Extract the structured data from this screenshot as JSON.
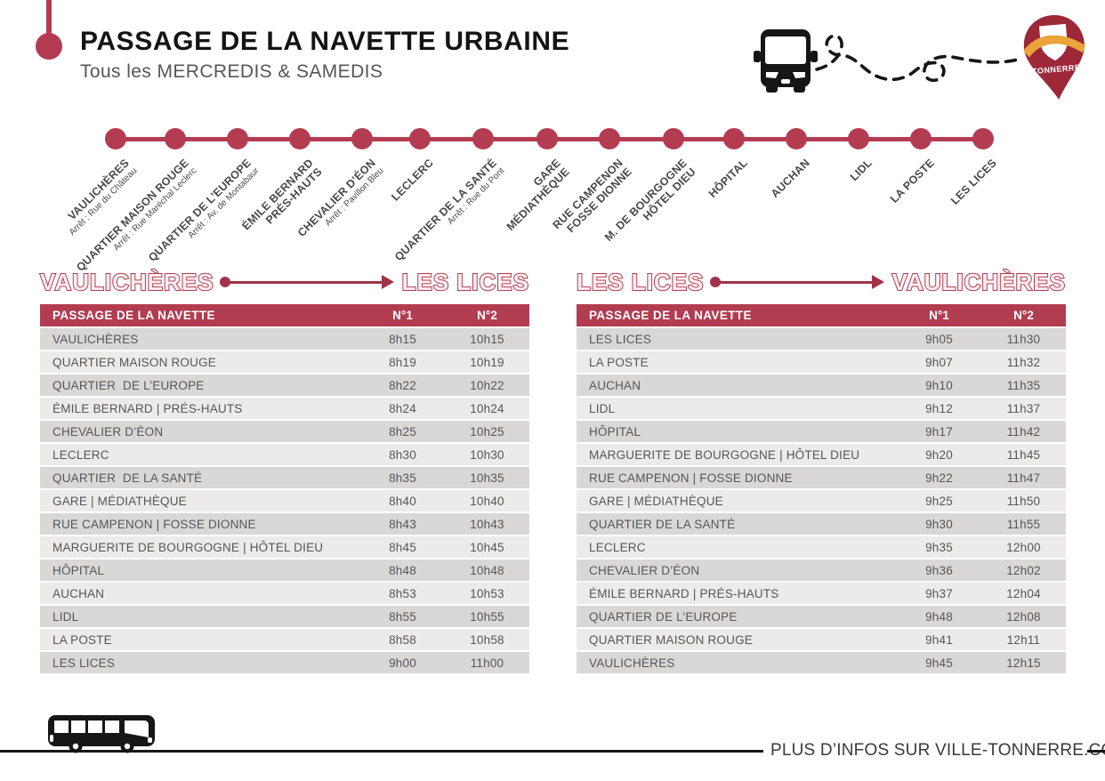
{
  "header": {
    "title": "PASSAGE DE LA NAVETTE URBAINE",
    "subtitle": "Tous les MERCREDIS & SAMEDIS"
  },
  "logo": {
    "label": "TONNERRE"
  },
  "route": {
    "stops": [
      {
        "name": "VAULICHÈRES",
        "sub": "Arrêt : Rue du Château"
      },
      {
        "name": "QUARTIER MAISON ROUGE",
        "sub": "Arrêt : Rue Maréchal Leclerc"
      },
      {
        "name": "QUARTIER DE L’EUROPE",
        "sub": "Arrêt : Av. de Montabaur"
      },
      {
        "name": "ÉMILE BERNARD\nPRÉS-HAUTS",
        "sub": ""
      },
      {
        "name": "CHEVALIER D’ÉON",
        "sub": "Arrêt : Pavillon Bleu"
      },
      {
        "name": "LECLERC",
        "sub": ""
      },
      {
        "name": "QUARTIER  DE LA SANTÉ",
        "sub": "Arrêt : Rue du Pont"
      },
      {
        "name": "GARE\nMÉDIATHÈQUE",
        "sub": ""
      },
      {
        "name": "RUE CAMPENON\nFOSSE DIONNE",
        "sub": ""
      },
      {
        "name": "M. DE BOURGOGNE\nHÔTEL DIEU",
        "sub": ""
      },
      {
        "name": "HÔPITAL",
        "sub": ""
      },
      {
        "name": "AUCHAN",
        "sub": ""
      },
      {
        "name": "LIDL",
        "sub": ""
      },
      {
        "name": "LA POSTE",
        "sub": ""
      },
      {
        "name": "LES LICES",
        "sub": ""
      }
    ]
  },
  "tables": [
    {
      "from": "VAULICHÈRES",
      "to": "LES LICES",
      "columns": [
        "PASSAGE DE LA NAVETTE",
        "N°1",
        "N°2"
      ],
      "rows": [
        [
          "VAULICHÈRES",
          "8h15",
          "10h15"
        ],
        [
          "QUARTIER MAISON ROUGE",
          "8h19",
          "10h19"
        ],
        [
          "QUARTIER  DE L’EUROPE",
          "8h22",
          "10h22"
        ],
        [
          "ÉMILE BERNARD | PRÉS-HAUTS",
          "8h24",
          "10h24"
        ],
        [
          "CHEVALIER D’ÉON",
          "8h25",
          "10h25"
        ],
        [
          "LECLERC",
          "8h30",
          "10h30"
        ],
        [
          "QUARTIER  DE LA SANTÉ",
          "8h35",
          "10h35"
        ],
        [
          "GARE | MÉDIATHÈQUE",
          "8h40",
          "10h40"
        ],
        [
          "RUE CAMPENON | FOSSE DIONNE",
          "8h43",
          "10h43"
        ],
        [
          "MARGUERITE DE BOURGOGNE | HÔTEL DIEU",
          "8h45",
          "10h45"
        ],
        [
          "HÔPITAL",
          "8h48",
          "10h48"
        ],
        [
          "AUCHAN",
          "8h53",
          "10h53"
        ],
        [
          "LIDL",
          "8h55",
          "10h55"
        ],
        [
          "LA POSTE",
          "8h58",
          "10h58"
        ],
        [
          "LES LICES",
          "9h00",
          "11h00"
        ]
      ]
    },
    {
      "from": "LES LICES",
      "to": "VAULICHÈRES",
      "columns": [
        "PASSAGE DE LA NAVETTE",
        "N°1",
        "N°2"
      ],
      "rows": [
        [
          "LES LICES",
          "9h05",
          "11h30"
        ],
        [
          "LA POSTE",
          "9h07",
          "11h32"
        ],
        [
          "AUCHAN",
          "9h10",
          "11h35"
        ],
        [
          "LIDL",
          "9h12",
          "11h37"
        ],
        [
          "HÔPITAL",
          "9h17",
          "11h42"
        ],
        [
          "MARGUERITE DE BOURGOGNE | HÔTEL DIEU",
          "9h20",
          "11h45"
        ],
        [
          "RUE CAMPENON | FOSSE DIONNE",
          "9h22",
          "11h47"
        ],
        [
          "GARE | MÉDIATHÈQUE",
          "9h25",
          "11h50"
        ],
        [
          "QUARTIER DE LA SANTÉ",
          "9h30",
          "11h55"
        ],
        [
          "LECLERC",
          "9h35",
          "12h00"
        ],
        [
          "CHEVALIER D’ÉON",
          "9h36",
          "12h02"
        ],
        [
          "ÉMILE BERNARD | PRÉS-HAUTS",
          "9h37",
          "12h04"
        ],
        [
          "QUARTIER DE L’EUROPE",
          "9h48",
          "12h08"
        ],
        [
          "QUARTIER MAISON ROUGE",
          "9h41",
          "12h11"
        ],
        [
          "VAULICHÈRES",
          "9h45",
          "12h15"
        ]
      ]
    }
  ],
  "footer": {
    "info": "PLUS D’INFOS SUR VILLE-TONNERRE.COM"
  },
  "colors": {
    "accent": "#b23c50",
    "pin": "#9c2838",
    "ribbon": "#e9a43c"
  }
}
